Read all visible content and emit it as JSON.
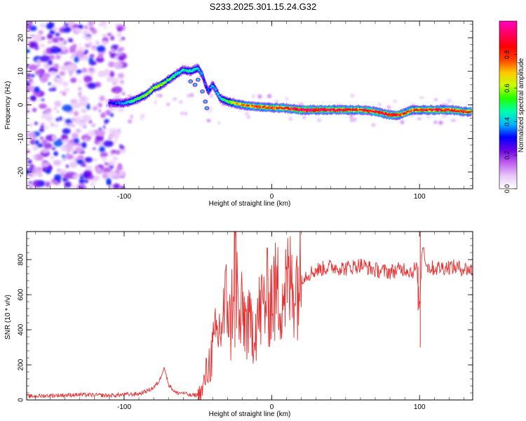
{
  "title": "S233.2025.301.15.24.G32",
  "chart_data": [
    {
      "type": "heatmap",
      "title": "S233.2025.301.15.24.G32",
      "xlabel": "Height of straight line (km)",
      "ylabel": "Frequency (Hz)",
      "xlim": [
        -166,
        136
      ],
      "ylim": [
        -25,
        25
      ],
      "xticks": [
        -100,
        0,
        100
      ],
      "yticks": [
        -20,
        -10,
        0,
        10,
        20
      ],
      "colorbar": {
        "label": "Normalized spectral amplitude",
        "range": [
          0,
          1
        ],
        "ticks": [
          0.0,
          0.2,
          0.4,
          0.6,
          0.8
        ],
        "colormap": [
          "#ffffff",
          "#e8c8f8",
          "#c060f0",
          "#6a00e8",
          "#0000ff",
          "#00b8ff",
          "#00ffb0",
          "#20ff00",
          "#c8ff00",
          "#ffc800",
          "#ff4000",
          "#ff0000",
          "#ff0060",
          "#ff00c0"
        ]
      },
      "ridge": {
        "x": [
          -110,
          -105,
          -100,
          -95,
          -90,
          -85,
          -80,
          -75,
          -70,
          -65,
          -60,
          -55,
          -50,
          -47,
          -45,
          -43,
          -40,
          -38,
          -35,
          -30,
          -25,
          -20,
          -10,
          0,
          10,
          20,
          30,
          40,
          50,
          60,
          70,
          80,
          85,
          90,
          95,
          100,
          110,
          120,
          130,
          135
        ],
        "y": [
          0.5,
          0.5,
          0.5,
          1.0,
          2.0,
          3.0,
          5.0,
          6.0,
          7.5,
          9.0,
          10.5,
          10.0,
          11.0,
          9.0,
          6.0,
          4.0,
          6.0,
          4.5,
          2.0,
          1.0,
          0.5,
          0.0,
          -0.5,
          -0.8,
          -1.0,
          -1.5,
          -1.5,
          -1.5,
          -1.5,
          -1.5,
          -2.0,
          -3.0,
          -3.0,
          -2.5,
          -1.5,
          -1.5,
          -1.5,
          -1.5,
          -2.0,
          -2.0
        ],
        "amplitude": [
          0.3,
          0.35,
          0.4,
          0.5,
          0.55,
          0.6,
          0.65,
          0.6,
          0.55,
          0.5,
          0.45,
          0.5,
          0.45,
          0.4,
          0.35,
          0.35,
          0.4,
          0.4,
          0.45,
          0.55,
          0.7,
          0.75,
          0.8,
          0.85,
          0.85,
          0.95,
          0.95,
          0.95,
          0.9,
          0.85,
          0.9,
          0.9,
          0.85,
          0.85,
          0.8,
          0.85,
          0.9,
          0.9,
          0.85,
          0.8
        ]
      },
      "noise_region_x": [
        -166,
        -100
      ]
    },
    {
      "type": "line",
      "title": "",
      "xlabel": "Height of straight line (km)",
      "ylabel": "SNR (10 * v/v)",
      "xlim": [
        -166,
        136
      ],
      "ylim": [
        0,
        960
      ],
      "xticks": [
        -100,
        0,
        100
      ],
      "yticks": [
        0,
        200,
        400,
        600,
        800
      ],
      "color": "#e83030",
      "series": [
        {
          "name": "SNR",
          "x": [
            -166,
            -150,
            -130,
            -110,
            -100,
            -90,
            -85,
            -80,
            -76,
            -73,
            -70,
            -65,
            -60,
            -55,
            -50,
            -47,
            -45,
            -42,
            -40,
            -38,
            -35,
            -32,
            -30,
            -28,
            -25,
            -22,
            -20,
            -15,
            -10,
            -5,
            0,
            5,
            10,
            15,
            20,
            25,
            30,
            40,
            50,
            60,
            70,
            80,
            90,
            95,
            98,
            100,
            102,
            105,
            110,
            120,
            130,
            136
          ],
          "y": [
            20,
            25,
            30,
            25,
            30,
            35,
            50,
            70,
            110,
            190,
            90,
            40,
            40,
            25,
            30,
            50,
            130,
            220,
            280,
            350,
            400,
            500,
            600,
            380,
            870,
            400,
            500,
            400,
            460,
            560,
            600,
            610,
            640,
            680,
            700,
            720,
            740,
            760,
            750,
            770,
            740,
            730,
            750,
            730,
            760,
            520,
            900,
            760,
            750,
            760,
            750,
            740
          ]
        }
      ]
    }
  ]
}
